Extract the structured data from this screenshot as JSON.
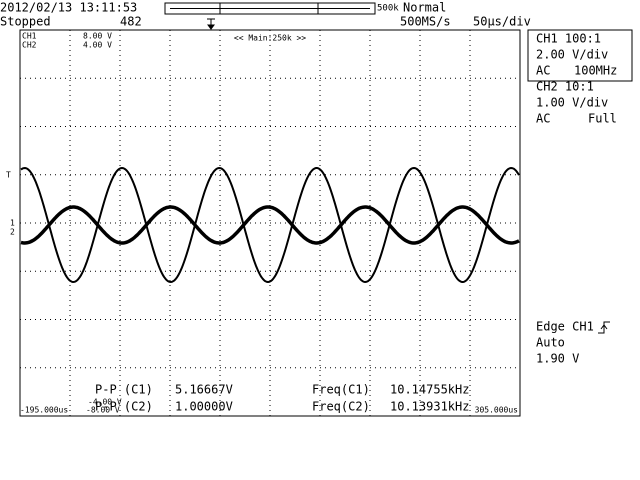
{
  "status": {
    "datetime": "2012/02/13 13:11:53",
    "state": "Stopped",
    "count": "482",
    "record": "500k",
    "mode": "Normal",
    "sample_rate": "500MS/s",
    "timebase": "50μs/div"
  },
  "screen": {
    "ch1_offset": "CH1",
    "ch1_offset_value": "8.00 V",
    "ch2_offset": "CH2",
    "ch2_offset_value": "4.00 V",
    "zoom": "<< Main:250k >>",
    "left_time": "-195.000us",
    "right_time": "305.000us",
    "ch2_low": "-4.00 V",
    "ch1_low": "-8.00 V"
  },
  "channels": [
    {
      "name": "CH1 100:1",
      "scale": "2.00 V/div",
      "coupling": "AC",
      "bandwidth": "100MHz"
    },
    {
      "name": "CH2 10:1",
      "scale": "1.00 V/div",
      "coupling": "AC",
      "bandwidth": "Full"
    }
  ],
  "trigger": {
    "type": "Edge CH1",
    "mode": "Auto",
    "level": "1.90 V"
  },
  "measurements": [
    {
      "label": "P-P (C1)",
      "value": "5.16667V",
      "freq_label": "Freq(C1)",
      "freq": "10.14755kHz"
    },
    {
      "label": "P-P (C2)",
      "value": "1.00000V",
      "freq_label": "Freq(C2)",
      "freq": "10.13931kHz"
    }
  ]
}
